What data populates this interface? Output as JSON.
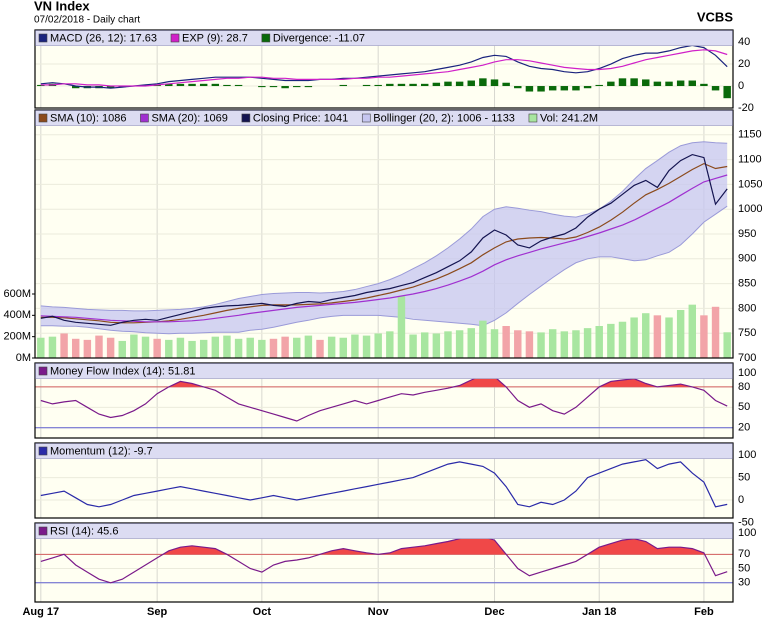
{
  "header": {
    "title": "VN Index",
    "subtitle": "07/02/2018 - Daily chart",
    "source": "VCBS"
  },
  "chart_data": [
    {
      "type": "line",
      "ylim": [
        -20,
        51
      ],
      "yticks": [
        40,
        20,
        0,
        -20
      ],
      "series": [
        {
          "name": "MACD (26, 12): 17.63",
          "type": "line",
          "color": "#1a237e",
          "values": [
            2,
            3,
            2,
            0,
            -1,
            -1,
            -2,
            -1,
            0,
            1,
            2,
            4,
            5,
            6,
            7,
            8,
            8,
            8,
            8,
            7,
            6,
            5,
            5,
            5,
            6,
            6,
            7,
            7,
            8,
            9,
            10,
            11,
            12,
            13,
            15,
            17,
            19,
            22,
            26,
            28,
            27,
            22,
            18,
            16,
            15,
            13,
            12,
            13,
            16,
            20,
            25,
            28,
            30,
            30,
            32,
            35,
            37,
            35,
            28,
            17.63
          ]
        },
        {
          "name": "EXP (9): 28.7",
          "type": "line",
          "color": "#d020c8",
          "values": [
            1,
            1,
            2,
            2,
            1,
            1,
            0,
            0,
            0,
            0,
            1,
            2,
            3,
            4,
            5,
            6,
            7,
            7,
            8,
            8,
            7,
            7,
            6,
            6,
            6,
            6,
            6,
            7,
            7,
            8,
            8,
            9,
            10,
            11,
            12,
            13,
            15,
            17,
            19,
            22,
            24,
            24,
            23,
            21,
            19,
            17,
            16,
            15,
            15,
            16,
            18,
            21,
            24,
            26,
            28,
            30,
            32,
            33,
            32,
            28.7
          ]
        },
        {
          "name": "Divergence: -11.07",
          "type": "bar",
          "color": "#0a6a0a",
          "values": [
            1,
            2,
            0,
            -2,
            -2,
            -2,
            -2,
            -1,
            0,
            1,
            1,
            2,
            2,
            2,
            2,
            2,
            1,
            1,
            0,
            -1,
            -1,
            -2,
            -1,
            -1,
            0,
            0,
            1,
            0,
            1,
            1,
            2,
            2,
            2,
            2,
            3,
            4,
            4,
            5,
            7,
            6,
            3,
            -2,
            -5,
            -5,
            -4,
            -4,
            -4,
            -2,
            1,
            4,
            7,
            7,
            6,
            4,
            4,
            5,
            5,
            2,
            -4,
            -11.07
          ]
        }
      ]
    },
    {
      "type": "line",
      "ylim": [
        700,
        1200
      ],
      "yticks": [
        1150,
        1100,
        1050,
        1000,
        950,
        900,
        850,
        800,
        750,
        700
      ],
      "y2lim": [
        0,
        2325
      ],
      "y2ticks": [
        {
          "value": 600,
          "label": "600M"
        },
        {
          "value": 400,
          "label": "400M"
        },
        {
          "value": 200,
          "label": "200M"
        },
        {
          "value": 0,
          "label": "0M"
        }
      ],
      "series": [
        {
          "name": "SMA (10): 1086",
          "type": "line",
          "color": "#8b4a1c",
          "values": [
            782,
            782,
            781,
            779,
            777,
            775,
            772,
            771,
            771,
            772,
            773,
            775,
            778,
            782,
            786,
            791,
            796,
            800,
            803,
            806,
            807,
            807,
            807,
            808,
            809,
            811,
            814,
            817,
            821,
            826,
            831,
            837,
            843,
            851,
            859,
            869,
            880,
            892,
            908,
            922,
            934,
            940,
            942,
            943,
            942,
            940,
            944,
            953,
            964,
            978,
            994,
            1012,
            1029,
            1040,
            1052,
            1066,
            1080,
            1092,
            1082,
            1086
          ]
        },
        {
          "name": "SMA (20): 1069",
          "type": "line",
          "color": "#a030d0",
          "values": [
            785,
            784,
            783,
            782,
            780,
            778,
            776,
            775,
            774,
            773,
            773,
            773,
            774,
            775,
            777,
            780,
            783,
            786,
            790,
            793,
            796,
            799,
            802,
            804,
            806,
            808,
            810,
            812,
            815,
            818,
            821,
            825,
            829,
            834,
            840,
            847,
            855,
            864,
            875,
            888,
            898,
            906,
            913,
            920,
            926,
            932,
            938,
            945,
            952,
            960,
            968,
            978,
            990,
            1002,
            1014,
            1028,
            1042,
            1055,
            1062,
            1069
          ]
        },
        {
          "name": "Closing Price: 1041",
          "type": "line",
          "color": "#141450",
          "values": [
            780,
            784,
            776,
            772,
            770,
            768,
            766,
            772,
            776,
            778,
            776,
            782,
            788,
            794,
            800,
            803,
            805,
            806,
            808,
            810,
            806,
            804,
            810,
            814,
            812,
            818,
            822,
            826,
            832,
            836,
            840,
            846,
            852,
            862,
            872,
            884,
            896,
            914,
            942,
            958,
            948,
            928,
            922,
            936,
            944,
            950,
            962,
            984,
            1000,
            1012,
            1030,
            1048,
            1058,
            1044,
            1078,
            1098,
            1110,
            1104,
            1010,
            1041
          ]
        },
        {
          "name": "Bollinger (20, 2): 1006 - 1133",
          "type": "band",
          "color": "#c6c6f0",
          "edge": "#9a9ad8",
          "upper": [
            805,
            803,
            802,
            800,
            798,
            797,
            796,
            796,
            795,
            795,
            796,
            797,
            798,
            800,
            803,
            808,
            814,
            820,
            824,
            828,
            830,
            831,
            832,
            832,
            831,
            832,
            834,
            838,
            844,
            850,
            858,
            868,
            880,
            892,
            906,
            922,
            940,
            960,
            985,
            1000,
            1005,
            1002,
            998,
            995,
            990,
            986,
            984,
            990,
            1000,
            1016,
            1036,
            1060,
            1082,
            1098,
            1115,
            1128,
            1134,
            1136,
            1134,
            1133
          ],
          "lower": [
            765,
            765,
            764,
            764,
            762,
            759,
            756,
            754,
            753,
            751,
            750,
            749,
            750,
            750,
            751,
            752,
            752,
            752,
            756,
            758,
            762,
            767,
            772,
            776,
            781,
            784,
            786,
            786,
            786,
            786,
            784,
            782,
            778,
            776,
            774,
            772,
            770,
            768,
            765,
            776,
            791,
            810,
            828,
            845,
            862,
            878,
            892,
            900,
            904,
            904,
            900,
            896,
            898,
            906,
            913,
            928,
            950,
            974,
            990,
            1006
          ]
        },
        {
          "name": "Vol: 241.2M",
          "type": "bar",
          "axis": "y2",
          "color": "#a8e6a0",
          "up_color": "#a8e6a0",
          "down_color": "#f2a4a8",
          "values": [
            190,
            200,
            230,
            180,
            170,
            210,
            190,
            160,
            220,
            200,
            180,
            170,
            190,
            160,
            170,
            200,
            210,
            180,
            190,
            170,
            180,
            200,
            190,
            210,
            170,
            200,
            190,
            220,
            210,
            230,
            250,
            580,
            220,
            240,
            230,
            250,
            260,
            280,
            350,
            270,
            300,
            260,
            250,
            240,
            270,
            250,
            260,
            280,
            300,
            320,
            340,
            380,
            420,
            400,
            380,
            450,
            500,
            400,
            480,
            241.2
          ]
        }
      ]
    },
    {
      "type": "line",
      "ylim": [
        5,
        115
      ],
      "yticks": [
        100,
        80,
        50,
        20
      ],
      "overbought": 80,
      "oversold": 20,
      "series": [
        {
          "name": "Money Flow Index (14): 51.81",
          "type": "line",
          "color": "#7a1a8a",
          "fill": "#f04848",
          "values": [
            60,
            55,
            58,
            60,
            50,
            40,
            35,
            38,
            45,
            55,
            70,
            80,
            88,
            85,
            80,
            75,
            65,
            55,
            50,
            45,
            40,
            35,
            30,
            38,
            45,
            50,
            55,
            60,
            55,
            60,
            65,
            70,
            68,
            72,
            75,
            78,
            82,
            90,
            98,
            95,
            80,
            60,
            50,
            55,
            45,
            40,
            50,
            65,
            80,
            88,
            90,
            92,
            85,
            80,
            82,
            84,
            80,
            75,
            60,
            51.81
          ]
        }
      ]
    },
    {
      "type": "line",
      "ylim": [
        -40,
        127
      ],
      "yticks": [
        100,
        50,
        0,
        -50
      ],
      "series": [
        {
          "name": "Momentum (12): -9.7",
          "type": "line",
          "color": "#2a2aa8",
          "values": [
            10,
            15,
            20,
            5,
            -10,
            -15,
            -10,
            0,
            10,
            15,
            20,
            25,
            30,
            25,
            20,
            15,
            10,
            5,
            0,
            5,
            10,
            5,
            0,
            5,
            10,
            15,
            20,
            25,
            30,
            35,
            40,
            45,
            50,
            60,
            70,
            80,
            85,
            80,
            75,
            60,
            30,
            -10,
            -15,
            -5,
            -10,
            0,
            20,
            50,
            60,
            70,
            80,
            85,
            90,
            70,
            80,
            85,
            60,
            40,
            -15,
            -9.7
          ]
        }
      ]
    },
    {
      "type": "line",
      "ylim": [
        3,
        114
      ],
      "yticks": [
        100,
        70,
        50,
        30
      ],
      "overbought": 70,
      "oversold": 30,
      "categories": [
        "Aug 17",
        null,
        null,
        null,
        null,
        null,
        null,
        null,
        null,
        null,
        "Sep",
        null,
        null,
        null,
        null,
        null,
        null,
        null,
        null,
        "Oct",
        null,
        null,
        null,
        null,
        null,
        null,
        null,
        null,
        null,
        "Nov",
        null,
        null,
        null,
        null,
        null,
        null,
        null,
        null,
        null,
        "Dec",
        null,
        null,
        null,
        null,
        null,
        null,
        null,
        null,
        "Jan 18",
        null,
        null,
        null,
        null,
        null,
        null,
        null,
        null,
        "Feb",
        null,
        null
      ],
      "series": [
        {
          "name": "RSI (14): 45.6",
          "type": "line",
          "color": "#7a1a8a",
          "fill": "#f04848",
          "values": [
            60,
            65,
            70,
            55,
            45,
            35,
            30,
            35,
            45,
            55,
            65,
            75,
            80,
            82,
            80,
            78,
            70,
            60,
            50,
            45,
            55,
            60,
            62,
            65,
            70,
            75,
            78,
            75,
            72,
            70,
            72,
            78,
            80,
            82,
            85,
            88,
            92,
            98,
            95,
            90,
            70,
            50,
            40,
            45,
            50,
            55,
            60,
            70,
            80,
            85,
            90,
            92,
            88,
            78,
            80,
            80,
            78,
            72,
            40,
            45.6
          ]
        }
      ]
    }
  ]
}
